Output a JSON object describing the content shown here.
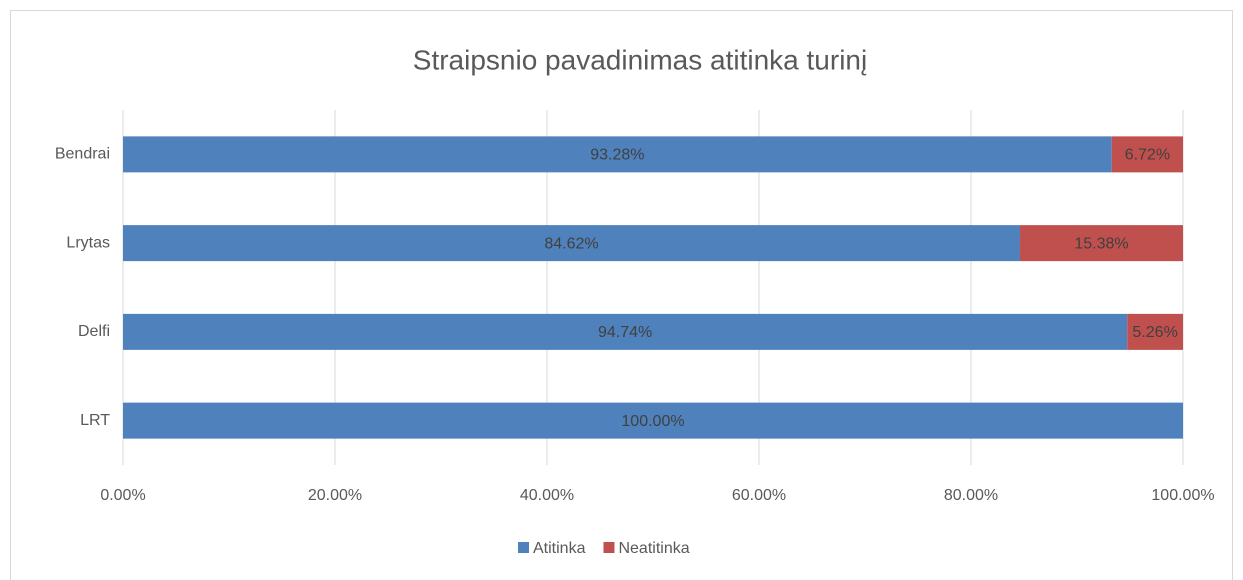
{
  "chart_data": {
    "type": "stacked_barh",
    "title": "Straipsnio pavadinimas atitinka turinį",
    "categories": [
      "LRT",
      "Delfi",
      "Lrytas",
      "Bendrai"
    ],
    "series": [
      {
        "name": "Atitinka",
        "color": "#4f81bd",
        "values": [
          100,
          94.74,
          84.62,
          93.28
        ],
        "value_labels": [
          "100.00%",
          "94.74%",
          "84.62%",
          "93.28%"
        ]
      },
      {
        "name": "Neatitinka",
        "color": "#c0504d",
        "values": [
          0,
          5.26,
          15.38,
          6.72
        ],
        "value_labels": [
          null,
          "5.26%",
          "15.38%",
          "6.72%"
        ]
      }
    ],
    "xlim": [
      0,
      100
    ],
    "xticks": [
      {
        "value": 0,
        "label": "0.00%"
      },
      {
        "value": 20,
        "label": "20.00%"
      },
      {
        "value": 40,
        "label": "40.00%"
      },
      {
        "value": 60,
        "label": "60.00%"
      },
      {
        "value": 80,
        "label": "80.00%"
      },
      {
        "value": 100,
        "label": "100.00%"
      }
    ],
    "grid": true,
    "legend": "bottom"
  }
}
